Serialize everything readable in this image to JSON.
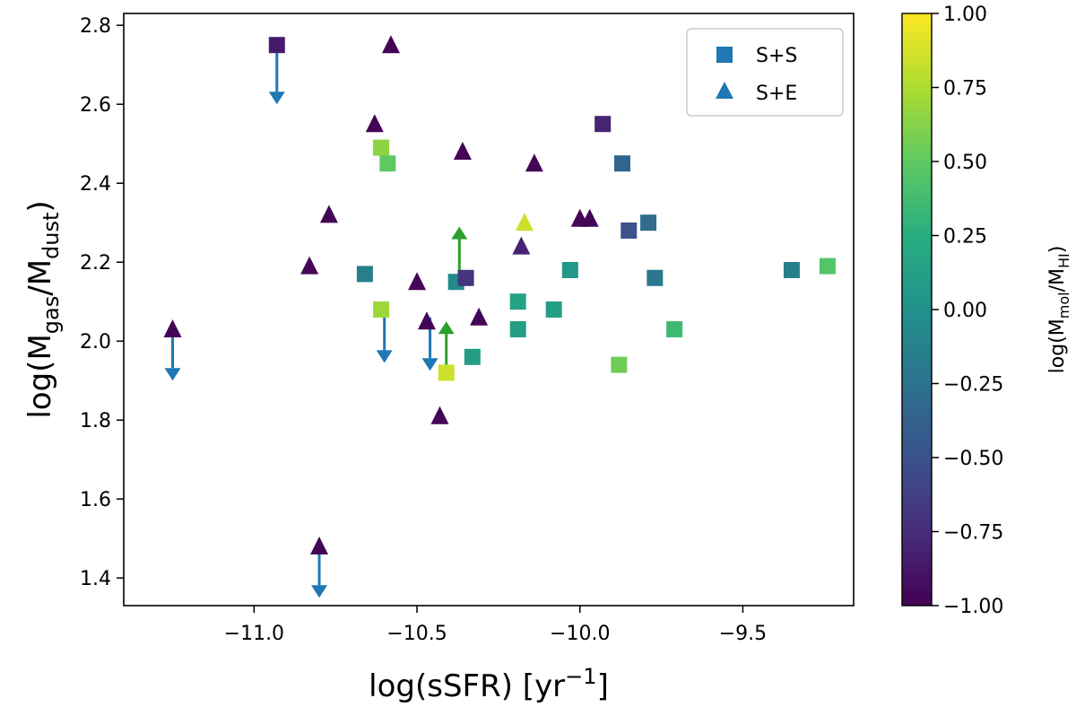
{
  "chart_data": {
    "type": "scatter",
    "xlabel": "log(sSFR) [yr⁻¹]",
    "ylabel": "log(M_gas/M_dust)",
    "ylabel_main": "log(M",
    "ylabel_sub1": "gas",
    "ylabel_mid": "/M",
    "ylabel_sub2": "dust",
    "ylabel_end": ")",
    "xlabel_main": "log(sSFR) [yr",
    "xlabel_sup": "−1",
    "xlabel_end": "]",
    "xlim": [
      -11.4,
      -9.16
    ],
    "ylim": [
      1.33,
      2.83
    ],
    "xticks": [
      -11.0,
      -10.5,
      -10.0,
      -9.5
    ],
    "xtick_labels": [
      "−11.0",
      "−10.5",
      "−10.0",
      "−9.5"
    ],
    "yticks": [
      1.4,
      1.6,
      1.8,
      2.0,
      2.2,
      2.4,
      2.6,
      2.8
    ],
    "ytick_labels": [
      "1.4",
      "1.6",
      "1.8",
      "2.0",
      "2.2",
      "2.4",
      "2.6",
      "2.8"
    ],
    "colorbar": {
      "label": "log(M_mol/M_HI)",
      "label_main": "log(M",
      "label_sub1": "mol",
      "label_mid": "/M",
      "label_sub2": "HI",
      "label_end": ")",
      "range": [
        -1.0,
        1.0
      ],
      "ticks": [
        -1.0,
        -0.75,
        -0.5,
        -0.25,
        0.0,
        0.25,
        0.5,
        0.75,
        1.0
      ],
      "tick_labels": [
        "−1.00",
        "−0.75",
        "−0.50",
        "−0.25",
        "0.00",
        "0.25",
        "0.50",
        "0.75",
        "1.00"
      ],
      "colormap": "viridis"
    },
    "legend": {
      "position": "top-right",
      "entries": [
        {
          "label": "S+S",
          "marker": "square",
          "color": "#1f77b4"
        },
        {
          "label": "S+E",
          "marker": "triangle",
          "color": "#1f77b4"
        }
      ]
    },
    "series": [
      {
        "name": "S+S",
        "marker": "square",
        "points": [
          {
            "x": -10.93,
            "y": 2.75,
            "c": -0.85
          },
          {
            "x": -10.61,
            "y": 2.49,
            "c": 0.65
          },
          {
            "x": -10.59,
            "y": 2.45,
            "c": 0.5
          },
          {
            "x": -10.66,
            "y": 2.17,
            "c": -0.15
          },
          {
            "x": -10.61,
            "y": 2.08,
            "c": 0.7
          },
          {
            "x": -10.38,
            "y": 2.15,
            "c": -0.05
          },
          {
            "x": -10.35,
            "y": 2.16,
            "c": -0.7
          },
          {
            "x": -10.33,
            "y": 1.96,
            "c": 0.1
          },
          {
            "x": -10.41,
            "y": 1.92,
            "c": 0.85
          },
          {
            "x": -10.19,
            "y": 2.1,
            "c": 0.15
          },
          {
            "x": -10.19,
            "y": 2.03,
            "c": 0.12
          },
          {
            "x": -10.08,
            "y": 2.08,
            "c": 0.12
          },
          {
            "x": -10.03,
            "y": 2.18,
            "c": 0.05
          },
          {
            "x": -9.93,
            "y": 2.55,
            "c": -0.8
          },
          {
            "x": -9.87,
            "y": 2.45,
            "c": -0.35
          },
          {
            "x": -9.85,
            "y": 2.28,
            "c": -0.5
          },
          {
            "x": -9.79,
            "y": 2.3,
            "c": -0.3
          },
          {
            "x": -9.77,
            "y": 2.16,
            "c": -0.2
          },
          {
            "x": -9.88,
            "y": 1.94,
            "c": 0.55
          },
          {
            "x": -9.71,
            "y": 2.03,
            "c": 0.35
          },
          {
            "x": -9.35,
            "y": 2.18,
            "c": -0.15
          },
          {
            "x": -9.24,
            "y": 2.19,
            "c": 0.45
          }
        ]
      },
      {
        "name": "S+E",
        "marker": "triangle",
        "points": [
          {
            "x": -10.58,
            "y": 2.75,
            "c": -0.98
          },
          {
            "x": -10.63,
            "y": 2.55,
            "c": -0.98
          },
          {
            "x": -10.36,
            "y": 2.48,
            "c": -0.98
          },
          {
            "x": -10.14,
            "y": 2.45,
            "c": -0.98
          },
          {
            "x": -10.77,
            "y": 2.32,
            "c": -0.98
          },
          {
            "x": -10.17,
            "y": 2.3,
            "c": 0.85
          },
          {
            "x": -10.0,
            "y": 2.31,
            "c": -0.98
          },
          {
            "x": -9.97,
            "y": 2.31,
            "c": -0.98
          },
          {
            "x": -10.18,
            "y": 2.24,
            "c": -0.8
          },
          {
            "x": -10.83,
            "y": 2.19,
            "c": -0.98
          },
          {
            "x": -10.5,
            "y": 2.15,
            "c": -0.98
          },
          {
            "x": -10.31,
            "y": 2.06,
            "c": -0.98
          },
          {
            "x": -10.47,
            "y": 2.05,
            "c": -0.98
          },
          {
            "x": -11.25,
            "y": 2.03,
            "c": -0.98
          },
          {
            "x": -10.43,
            "y": 1.81,
            "c": -0.98
          },
          {
            "x": -10.8,
            "y": 1.48,
            "c": -0.98
          }
        ]
      }
    ],
    "limit_arrows": [
      {
        "type": "upper",
        "x": -10.93,
        "y0": 2.745,
        "y1": 2.6,
        "color": "#1f77b4"
      },
      {
        "type": "upper",
        "x": -11.25,
        "y0": 2.035,
        "y1": 1.9,
        "color": "#1f77b4"
      },
      {
        "type": "upper",
        "x": -10.6,
        "y0": 2.07,
        "y1": 1.945,
        "color": "#1f77b4"
      },
      {
        "type": "upper",
        "x": -10.46,
        "y0": 2.06,
        "y1": 1.925,
        "color": "#1f77b4"
      },
      {
        "type": "upper",
        "x": -10.8,
        "y0": 1.485,
        "y1": 1.35,
        "color": "#1f77b4"
      },
      {
        "type": "lower",
        "x": -10.37,
        "y0": 2.15,
        "y1": 2.29,
        "color": "#2ca02c"
      },
      {
        "type": "lower",
        "x": -10.41,
        "y0": 1.915,
        "y1": 2.05,
        "color": "#2ca02c"
      }
    ]
  }
}
